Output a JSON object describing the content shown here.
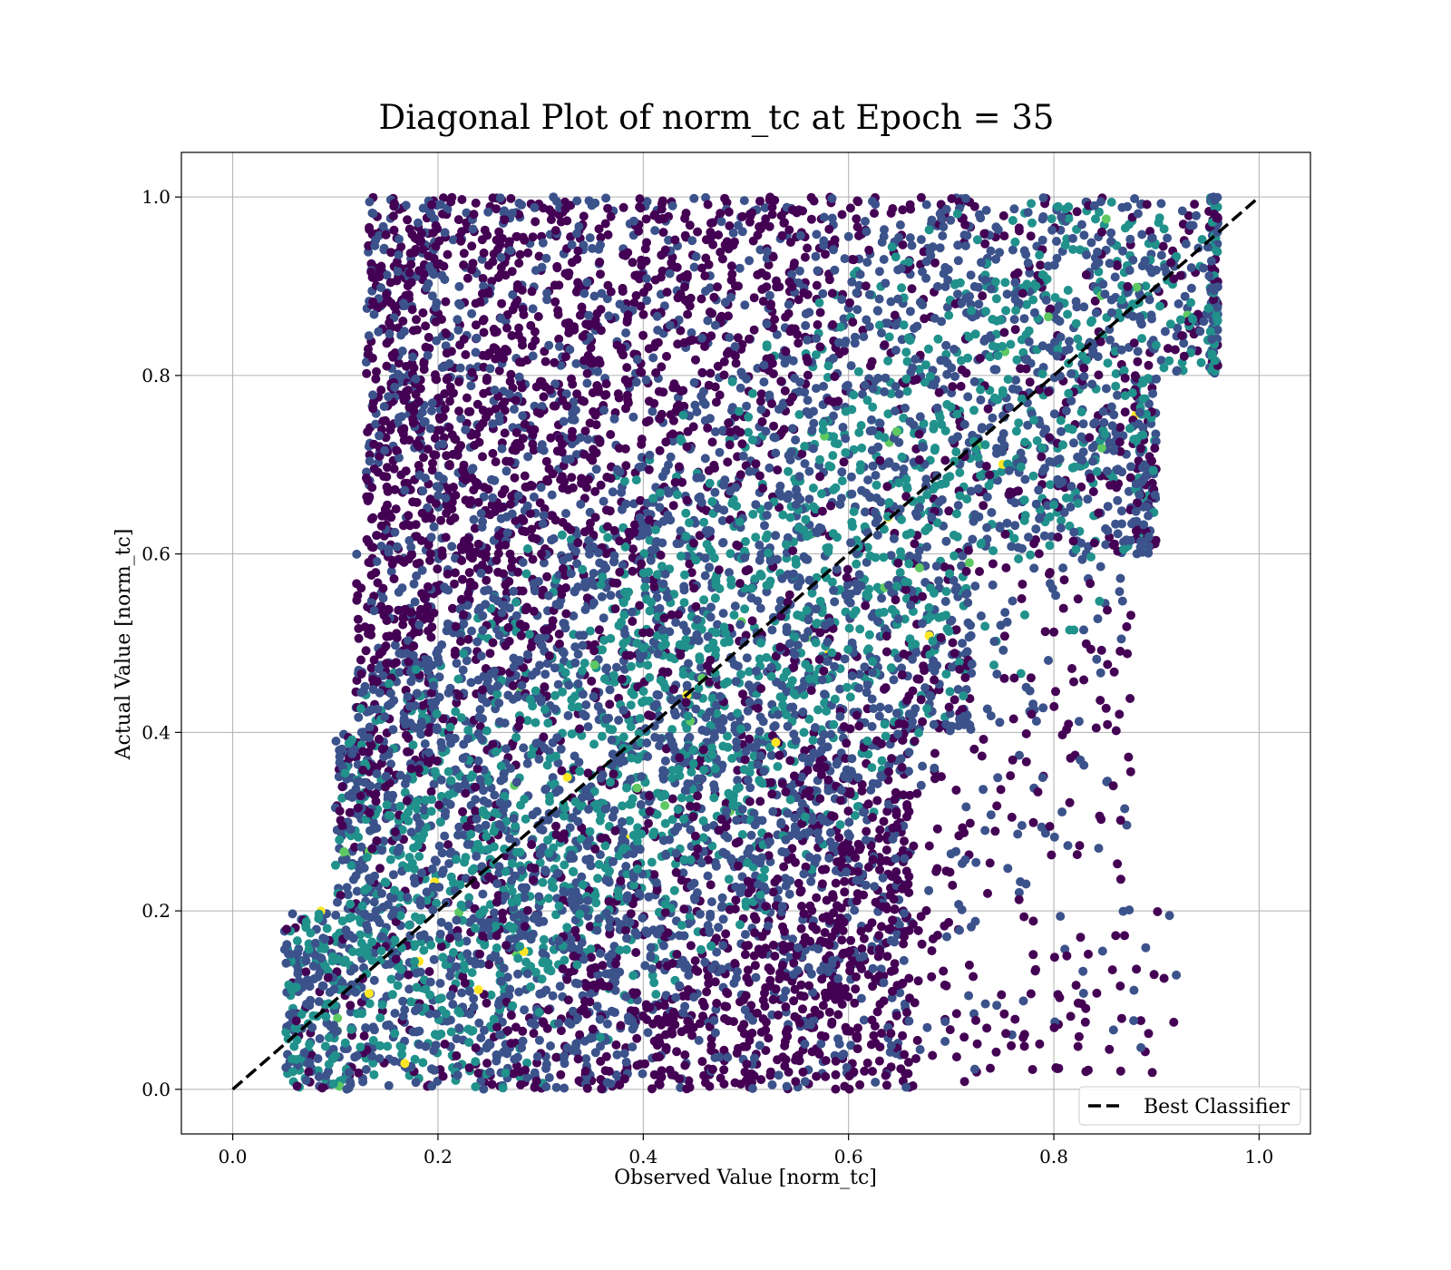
{
  "chart_data": {
    "type": "scatter",
    "title": "Diagonal Plot of norm_tc at Epoch = 35",
    "xlabel": "Observed Value [norm_tc]",
    "ylabel": "Actual Value [norm_tc]",
    "xlim": [
      -0.05,
      1.05
    ],
    "ylim": [
      -0.05,
      1.05
    ],
    "xticks": [
      "0.0",
      "0.2",
      "0.4",
      "0.6",
      "0.8",
      "1.0"
    ],
    "yticks": [
      "0.0",
      "0.2",
      "0.4",
      "0.6",
      "0.8",
      "1.0"
    ],
    "grid": true,
    "colormap": [
      "#440154",
      "#3b528b",
      "#21918c",
      "#5ec962",
      "#fde725"
    ],
    "reference_line": {
      "name": "Best Classifier",
      "x": [
        0.0,
        1.0
      ],
      "y": [
        0.0,
        1.0
      ],
      "color": "#000000",
      "style": "dashed"
    },
    "legend": {
      "entries": [
        "Best Classifier"
      ],
      "position": "lower-right"
    },
    "density_bands": [
      {
        "y_from": 0.0,
        "y_to": 0.2,
        "x_min": 0.05,
        "x_dense_max": 0.66,
        "x_sparse_max": 0.92
      },
      {
        "y_from": 0.2,
        "y_to": 0.4,
        "x_min": 0.1,
        "x_dense_max": 0.66,
        "x_sparse_max": 0.88
      },
      {
        "y_from": 0.4,
        "y_to": 0.6,
        "x_min": 0.12,
        "x_dense_max": 0.72,
        "x_sparse_max": 0.88
      },
      {
        "y_from": 0.6,
        "y_to": 0.8,
        "x_min": 0.13,
        "x_dense_max": 0.88,
        "x_sparse_max": 0.9
      },
      {
        "y_from": 0.8,
        "y_to": 1.0,
        "x_min": 0.13,
        "x_dense_max": 0.95,
        "x_sparse_max": 0.96
      }
    ]
  }
}
